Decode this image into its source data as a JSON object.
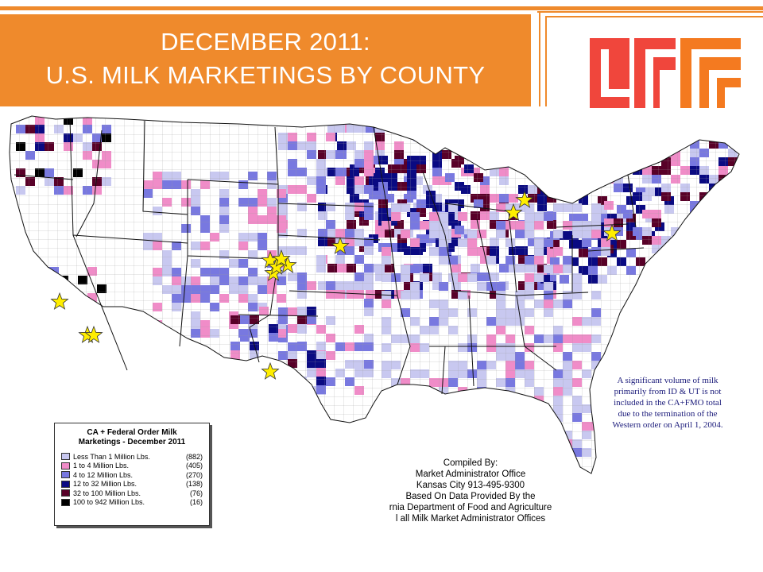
{
  "header": {
    "title_line1": "DECEMBER 2011:",
    "title_line2": "U.S. MILK MARKETINGS BY COUNTY"
  },
  "colors": {
    "banner": "#ef8a2c",
    "logo_red": "#f0463c",
    "logo_orange": "#f47a20",
    "cat_lt1": "#c8c8f0",
    "cat_1to4": "#f08cc8",
    "cat_4to12": "#7878e0",
    "cat_12to32": "#0a0a82",
    "cat_32to100": "#580028",
    "cat_100plus": "#000000",
    "star_fill": "#ffee00"
  },
  "legend": {
    "title_line1": "CA + Federal Order Milk",
    "title_line2": "Marketings - December 2011",
    "items": [
      {
        "label": "Less Than 1 Million Lbs.",
        "count": "(882)",
        "color": "#c8c8f0"
      },
      {
        "label": "1 to 4 Million Lbs.",
        "count": "(405)",
        "color": "#f08cc8"
      },
      {
        "label": "4 to 12 Million Lbs.",
        "count": "(270)",
        "color": "#7878e0"
      },
      {
        "label": "12 to 32 Million Lbs.",
        "count": "(138)",
        "color": "#0a0a82"
      },
      {
        "label": "32 to 100 Million Lbs.",
        "count": "(76)",
        "color": "#580028"
      },
      {
        "label": "100 to 942 Million Lbs.",
        "count": "(16)",
        "color": "#000000"
      }
    ]
  },
  "compiled": {
    "line1": "Compiled By:",
    "line2": "Market Administrator Office",
    "line3": "Kansas City 913-495-9300",
    "line4": "Based On Data Provided By the",
    "line5": "rnia Department of Food and Agriculture",
    "line6": "l all Milk Market Administrator Offices"
  },
  "note": {
    "line1": "A significant volume of milk",
    "line2": "primarily from ID & UT is not",
    "line3": "included in the CA+FMO total",
    "line4": "due to the termination of the",
    "line5": "Western order on April 1, 2004."
  },
  "markers": {
    "icon": "star-icon",
    "count": 13
  }
}
